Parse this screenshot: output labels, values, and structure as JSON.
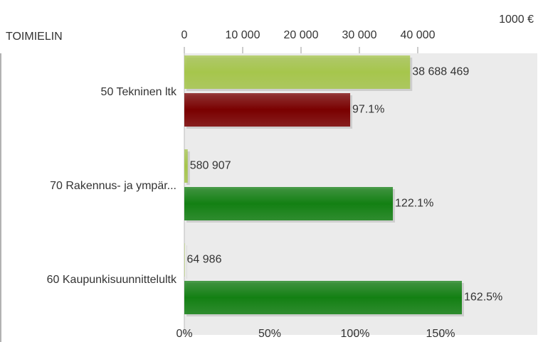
{
  "chart_data": {
    "type": "bar",
    "orientation": "horizontal",
    "unit_label": "1000 €",
    "category_header": "TOIMIELIN",
    "categories": [
      "50 Tekninen ltk",
      "70 Rakennus- ja ympär...",
      "60 Kaupunkisuunnittelultk"
    ],
    "x2lim": [
      0,
      60000
    ],
    "x2ticks": [
      0,
      {
        "value": 10000,
        "label": "10 000"
      },
      {
        "value": 20000,
        "label": "20 000"
      },
      {
        "value": 30000,
        "label": "30 000"
      },
      {
        "value": 40000,
        "label": "40 000"
      }
    ],
    "xlim": [
      0,
      205
    ],
    "xticks": [
      {
        "value": 0,
        "label": "0%"
      },
      {
        "value": 50,
        "label": "50%"
      },
      {
        "value": 100,
        "label": "100%"
      },
      {
        "value": 150,
        "label": "150%"
      }
    ],
    "series": [
      {
        "axis": "x2",
        "colors": [
          "#a6c64c",
          "#a6c64c",
          "#a6c64c"
        ],
        "values": [
          38688.469,
          580.907,
          64.986
        ],
        "value_labels": [
          "38 688 469",
          "580 907",
          "64 986"
        ]
      },
      {
        "axis": "x",
        "colors": [
          "#7a0000",
          "#138013",
          "#138013"
        ],
        "values": [
          97.1,
          122.1,
          162.5
        ],
        "value_labels": [
          "97.1%",
          "122.1%",
          "162.5%"
        ]
      }
    ]
  }
}
